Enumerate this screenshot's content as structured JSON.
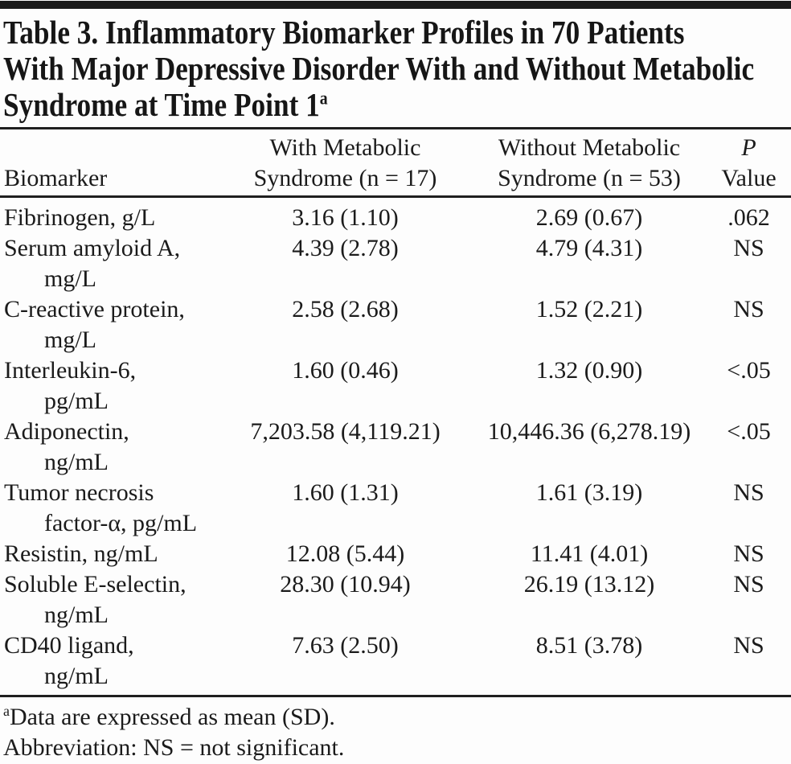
{
  "page": {
    "background": "#fdfdfd",
    "text_color": "#1b1b1b",
    "rule_color": "#1f1f1f"
  },
  "title": {
    "lines": [
      "Table 3. Inflammatory Biomarker Profiles in 70 Patients",
      "With Major Depressive Disorder With and Without Metabolic",
      "Syndrome at Time Point 1"
    ],
    "footnote_marker": "a"
  },
  "table": {
    "headers": {
      "biomarker": "Biomarker",
      "with_ms": [
        "With Metabolic",
        "Syndrome (n = 17)"
      ],
      "without_ms": [
        "Without Metabolic",
        "Syndrome (n = 53)"
      ],
      "p_value": [
        "P",
        "Value"
      ]
    },
    "rows": [
      {
        "name": "Fibrinogen, g/L",
        "name2": "",
        "with_ms": "3.16 (1.10)",
        "without_ms": "2.69 (0.67)",
        "p": ".062"
      },
      {
        "name": "Serum amyloid A,",
        "name2": "mg/L",
        "with_ms": "4.39 (2.78)",
        "without_ms": "4.79 (4.31)",
        "p": "NS"
      },
      {
        "name": "C-reactive protein,",
        "name2": "mg/L",
        "with_ms": "2.58 (2.68)",
        "without_ms": "1.52 (2.21)",
        "p": "NS"
      },
      {
        "name": "Interleukin-6,",
        "name2": "pg/mL",
        "with_ms": "1.60 (0.46)",
        "without_ms": "1.32 (0.90)",
        "p": "<.05"
      },
      {
        "name": "Adiponectin,",
        "name2": "ng/mL",
        "with_ms": "7,203.58 (4,119.21)",
        "without_ms": "10,446.36 (6,278.19)",
        "p": "<.05"
      },
      {
        "name": "Tumor necrosis",
        "name2": "factor-α, pg/mL",
        "with_ms": "1.60 (1.31)",
        "without_ms": "1.61 (3.19)",
        "p": "NS"
      },
      {
        "name": "Resistin, ng/mL",
        "name2": "",
        "with_ms": "12.08 (5.44)",
        "without_ms": "11.41 (4.01)",
        "p": "NS"
      },
      {
        "name": "Soluble E-selectin,",
        "name2": "ng/mL",
        "with_ms": "28.30 (10.94)",
        "without_ms": "26.19 (13.12)",
        "p": "NS"
      },
      {
        "name": "CD40 ligand,",
        "name2": "ng/mL",
        "with_ms": "7.63 (2.50)",
        "without_ms": "8.51 (3.78)",
        "p": "NS"
      }
    ]
  },
  "footnotes": {
    "marker": "a",
    "data_note": "Data are expressed as mean (SD).",
    "abbreviation_note": "Abbreviation: NS = not significant."
  }
}
